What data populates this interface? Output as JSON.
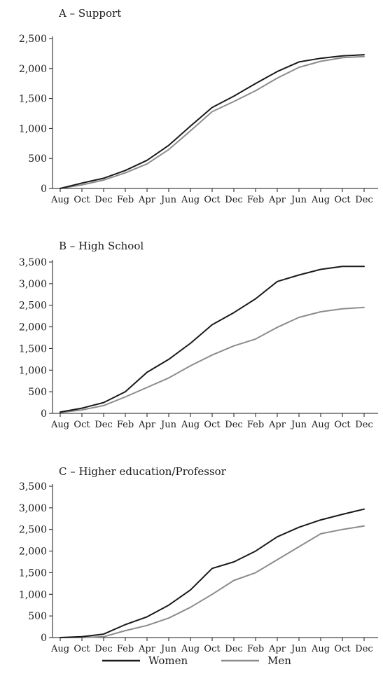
{
  "colors": {
    "women": "#1a1a1a",
    "men": "#8c8c8c",
    "axis": "#1a1a1a"
  },
  "legend": {
    "position": "bottom-center"
  },
  "chart_data": [
    {
      "type": "line",
      "title": "A – Support",
      "xlabel": "",
      "ylabel": "",
      "x_tick_labels": [
        "Aug",
        "Oct",
        "Dec",
        "Feb",
        "Apr",
        "Jun",
        "Aug",
        "Oct",
        "Dec",
        "Feb",
        "Apr",
        "Jun",
        "Aug",
        "Oct",
        "Dec"
      ],
      "y_ticks": [
        0,
        500,
        1000,
        1500,
        2000,
        2500
      ],
      "y_tick_labels": [
        "0",
        "500",
        "1,000",
        "1,500",
        "2,000",
        "2,500"
      ],
      "ylim": [
        0,
        2500
      ],
      "series": [
        {
          "name": "Women",
          "values": [
            0,
            90,
            170,
            300,
            470,
            720,
            1040,
            1350,
            1540,
            1750,
            1950,
            2110,
            2170,
            2210,
            2230
          ]
        },
        {
          "name": "Men",
          "values": [
            0,
            60,
            140,
            260,
            410,
            650,
            960,
            1280,
            1450,
            1630,
            1840,
            2020,
            2120,
            2180,
            2200
          ]
        }
      ]
    },
    {
      "type": "line",
      "title": "B – High School",
      "xlabel": "",
      "ylabel": "",
      "x_tick_labels": [
        "Aug",
        "Oct",
        "Dec",
        "Feb",
        "Apr",
        "Jun",
        "Aug",
        "Oct",
        "Dec",
        "Feb",
        "Apr",
        "Jun",
        "Aug",
        "Oct",
        "Dec"
      ],
      "y_ticks": [
        0,
        500,
        1000,
        1500,
        2000,
        2500,
        3000,
        3500
      ],
      "y_tick_labels": [
        "0",
        "500",
        "1,000",
        "1,500",
        "2,000",
        "2,500",
        "3,000",
        "3,500"
      ],
      "ylim": [
        0,
        3500
      ],
      "series": [
        {
          "name": "Women",
          "values": [
            30,
            120,
            250,
            500,
            950,
            1250,
            1620,
            2050,
            2330,
            2650,
            3050,
            3200,
            3330,
            3400,
            3400
          ]
        },
        {
          "name": "Men",
          "values": [
            20,
            80,
            180,
            380,
            600,
            820,
            1100,
            1350,
            1560,
            1720,
            1990,
            2220,
            2350,
            2420,
            2450
          ]
        }
      ]
    },
    {
      "type": "line",
      "title": "C – Higher education/Professor",
      "xlabel": "",
      "ylabel": "",
      "x_tick_labels": [
        "Aug",
        "Oct",
        "Dec",
        "Feb",
        "Apr",
        "Jun",
        "Aug",
        "Oct",
        "Dec",
        "Feb",
        "Apr",
        "Jun",
        "Aug",
        "Oct",
        "Dec"
      ],
      "y_ticks": [
        0,
        500,
        1000,
        1500,
        2000,
        2500,
        3000,
        3500
      ],
      "y_tick_labels": [
        "0",
        "500",
        "1,000",
        "1,500",
        "2,000",
        "2,500",
        "3,000",
        "3,500"
      ],
      "ylim": [
        0,
        3500
      ],
      "series": [
        {
          "name": "Women",
          "values": [
            0,
            20,
            80,
            300,
            480,
            750,
            1100,
            1600,
            1750,
            2000,
            2330,
            2550,
            2720,
            2850,
            2970
          ]
        },
        {
          "name": "Men",
          "values": [
            0,
            0,
            20,
            160,
            280,
            450,
            700,
            1000,
            1320,
            1500,
            1800,
            2100,
            2400,
            2500,
            2580
          ]
        }
      ]
    }
  ]
}
